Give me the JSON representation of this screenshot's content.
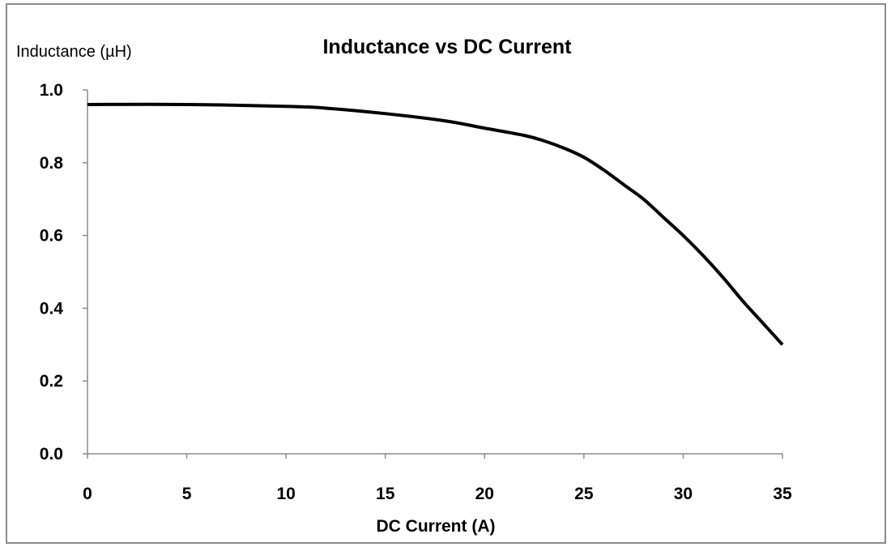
{
  "chart_data": {
    "type": "line",
    "title": "Inductance vs DC Current",
    "xlabel": "DC Current (A)",
    "ylabel": "Inductance (µH)",
    "xlim": [
      0,
      35
    ],
    "ylim": [
      0.0,
      1.0
    ],
    "x_ticks": [
      "0",
      "5",
      "10",
      "15",
      "20",
      "25",
      "30",
      "35"
    ],
    "y_ticks": [
      "0.0",
      "0.2",
      "0.4",
      "0.6",
      "0.8",
      "1.0"
    ],
    "grid": false,
    "legend": "none",
    "series": [
      {
        "color": "#000000",
        "x": [
          0,
          5,
          10,
          12,
          15,
          18,
          20,
          22,
          23,
          24,
          25,
          26,
          27,
          28,
          29,
          30,
          31,
          32,
          33,
          34,
          35
        ],
        "y": [
          0.96,
          0.96,
          0.955,
          0.95,
          0.935,
          0.915,
          0.895,
          0.875,
          0.86,
          0.84,
          0.815,
          0.78,
          0.74,
          0.7,
          0.65,
          0.6,
          0.545,
          0.485,
          0.42,
          0.36,
          0.3
        ]
      }
    ]
  }
}
